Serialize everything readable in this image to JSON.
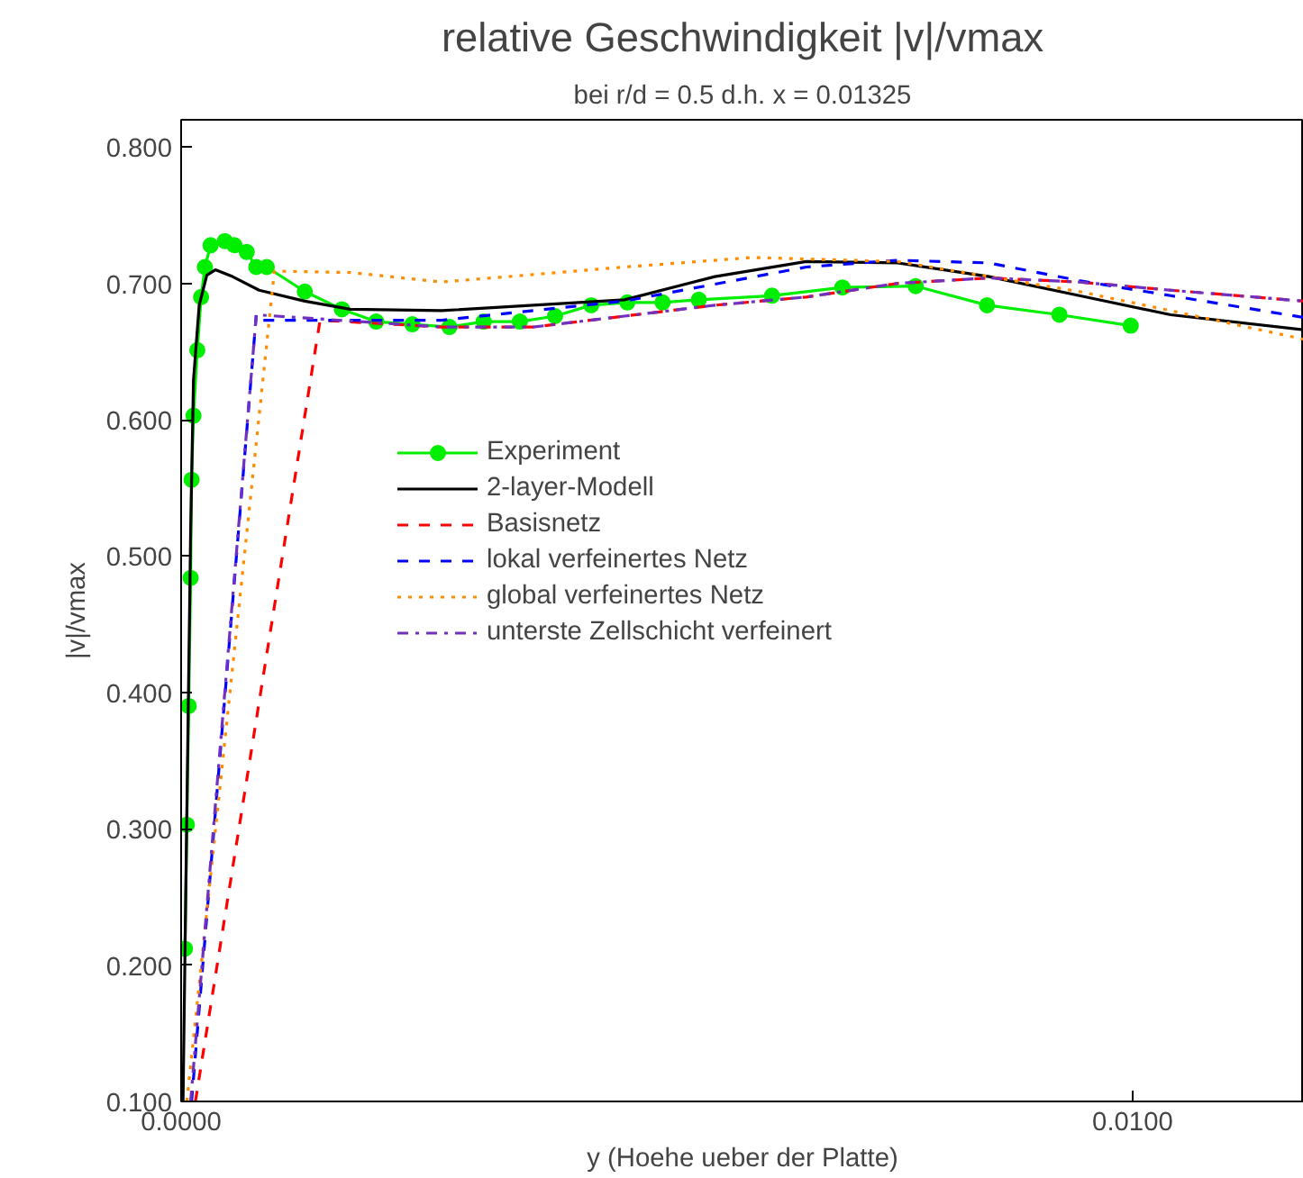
{
  "chart_data": {
    "type": "line",
    "title": "relative Geschwindigkeit |v|/vmax",
    "subtitle": "bei r/d = 0.5 d.h. x = 0.01325",
    "xlabel": "y (Hoehe ueber der Platte)",
    "ylabel": "|v|/vmax",
    "xlim": [
      0,
      0.0118
    ],
    "ylim": [
      0.1,
      0.82
    ],
    "xticks": [
      {
        "value": 0,
        "label": "0.0000"
      },
      {
        "value": 0.01,
        "label": "0.0100"
      }
    ],
    "yticks": [
      {
        "value": 0.1,
        "label": "0.100"
      },
      {
        "value": 0.2,
        "label": "0.200"
      },
      {
        "value": 0.3,
        "label": "0.300"
      },
      {
        "value": 0.4,
        "label": "0.400"
      },
      {
        "value": 0.5,
        "label": "0.500"
      },
      {
        "value": 0.6,
        "label": "0.600"
      },
      {
        "value": 0.7,
        "label": "0.700"
      },
      {
        "value": 0.8,
        "label": "0.800"
      }
    ],
    "grid": false,
    "legend": "center",
    "series": [
      {
        "name": "Experiment",
        "color": "#00ee00",
        "marker": "circle",
        "line_style": "solid",
        "x": [
          4e-05,
          6e-05,
          8e-05,
          0.0001,
          0.00011,
          0.00013,
          0.00017,
          0.00021,
          0.00025,
          0.00031,
          0.00046,
          0.00056,
          0.00069,
          0.00079,
          0.0009,
          0.0013,
          0.00169,
          0.00205,
          0.00243,
          0.00282,
          0.00318,
          0.00356,
          0.00393,
          0.00431,
          0.00469,
          0.00506,
          0.00544,
          0.00621,
          0.00695,
          0.00772,
          0.00847,
          0.00923,
          0.00998
        ],
        "values": [
          0.212,
          0.303,
          0.39,
          0.484,
          0.556,
          0.603,
          0.651,
          0.69,
          0.712,
          0.728,
          0.731,
          0.728,
          0.723,
          0.712,
          0.712,
          0.694,
          0.681,
          0.672,
          0.67,
          0.668,
          0.672,
          0.672,
          0.676,
          0.684,
          0.686,
          0.686,
          0.688,
          0.691,
          0.697,
          0.698,
          0.684,
          0.677,
          0.669
        ]
      },
      {
        "name": "2-layer-Modell",
        "color": "#000000",
        "marker": "none",
        "line_style": "solid",
        "x": [
          2e-05,
          6e-05,
          0.0001,
          0.00013,
          0.00019,
          0.00027,
          0.00036,
          0.00054,
          0.00082,
          0.0013,
          0.00178,
          0.00274,
          0.00466,
          0.00561,
          0.00657,
          0.00753,
          0.00849,
          0.00944,
          0.0104,
          0.0118
        ],
        "values": [
          0.1,
          0.311,
          0.518,
          0.629,
          0.684,
          0.706,
          0.71,
          0.705,
          0.695,
          0.687,
          0.681,
          0.68,
          0.688,
          0.705,
          0.716,
          0.715,
          0.705,
          0.691,
          0.677,
          0.666
        ]
      },
      {
        "name": "Basisnetz",
        "color": "#ff0000",
        "marker": "none",
        "line_style": "dashed",
        "x": [
          0.00015,
          0.00146,
          0.00274,
          0.0037,
          0.00466,
          0.00561,
          0.00657,
          0.00753,
          0.00849,
          0.00944,
          0.0104,
          0.0118
        ],
        "values": [
          0.1,
          0.673,
          0.668,
          0.668,
          0.676,
          0.684,
          0.69,
          0.7,
          0.704,
          0.701,
          0.695,
          0.687
        ]
      },
      {
        "name": "lokal verfeinertes Netz",
        "color": "#0000ff",
        "marker": "none",
        "line_style": "dashed",
        "x": [
          0.00011,
          0.00079,
          0.00082,
          0.00274,
          0.00466,
          0.00657,
          0.00753,
          0.00849,
          0.00944,
          0.0104,
          0.0118
        ],
        "values": [
          0.1,
          0.677,
          0.673,
          0.673,
          0.687,
          0.712,
          0.717,
          0.715,
          0.702,
          0.691,
          0.675
        ]
      },
      {
        "name": "global verfeinertes Netz",
        "color": "#ff8c00",
        "marker": "none",
        "line_style": "dotted",
        "x": [
          6e-05,
          0.00098,
          0.00178,
          0.00274,
          0.00466,
          0.006,
          0.00753,
          0.00849,
          0.00944,
          0.0104,
          0.0118
        ],
        "values": [
          0.1,
          0.709,
          0.708,
          0.701,
          0.712,
          0.719,
          0.716,
          0.705,
          0.694,
          0.68,
          0.659
        ]
      },
      {
        "name": "unterste Zellschicht verfeinert",
        "color": "#7030c0",
        "marker": "none",
        "line_style": "dashdot",
        "x": [
          0.0001,
          0.00079,
          0.00274,
          0.0037,
          0.00466,
          0.00561,
          0.00657,
          0.00753,
          0.00849,
          0.00944,
          0.0104,
          0.0118
        ],
        "values": [
          0.1,
          0.677,
          0.668,
          0.668,
          0.676,
          0.684,
          0.69,
          0.7,
          0.704,
          0.701,
          0.695,
          0.687
        ]
      }
    ]
  }
}
